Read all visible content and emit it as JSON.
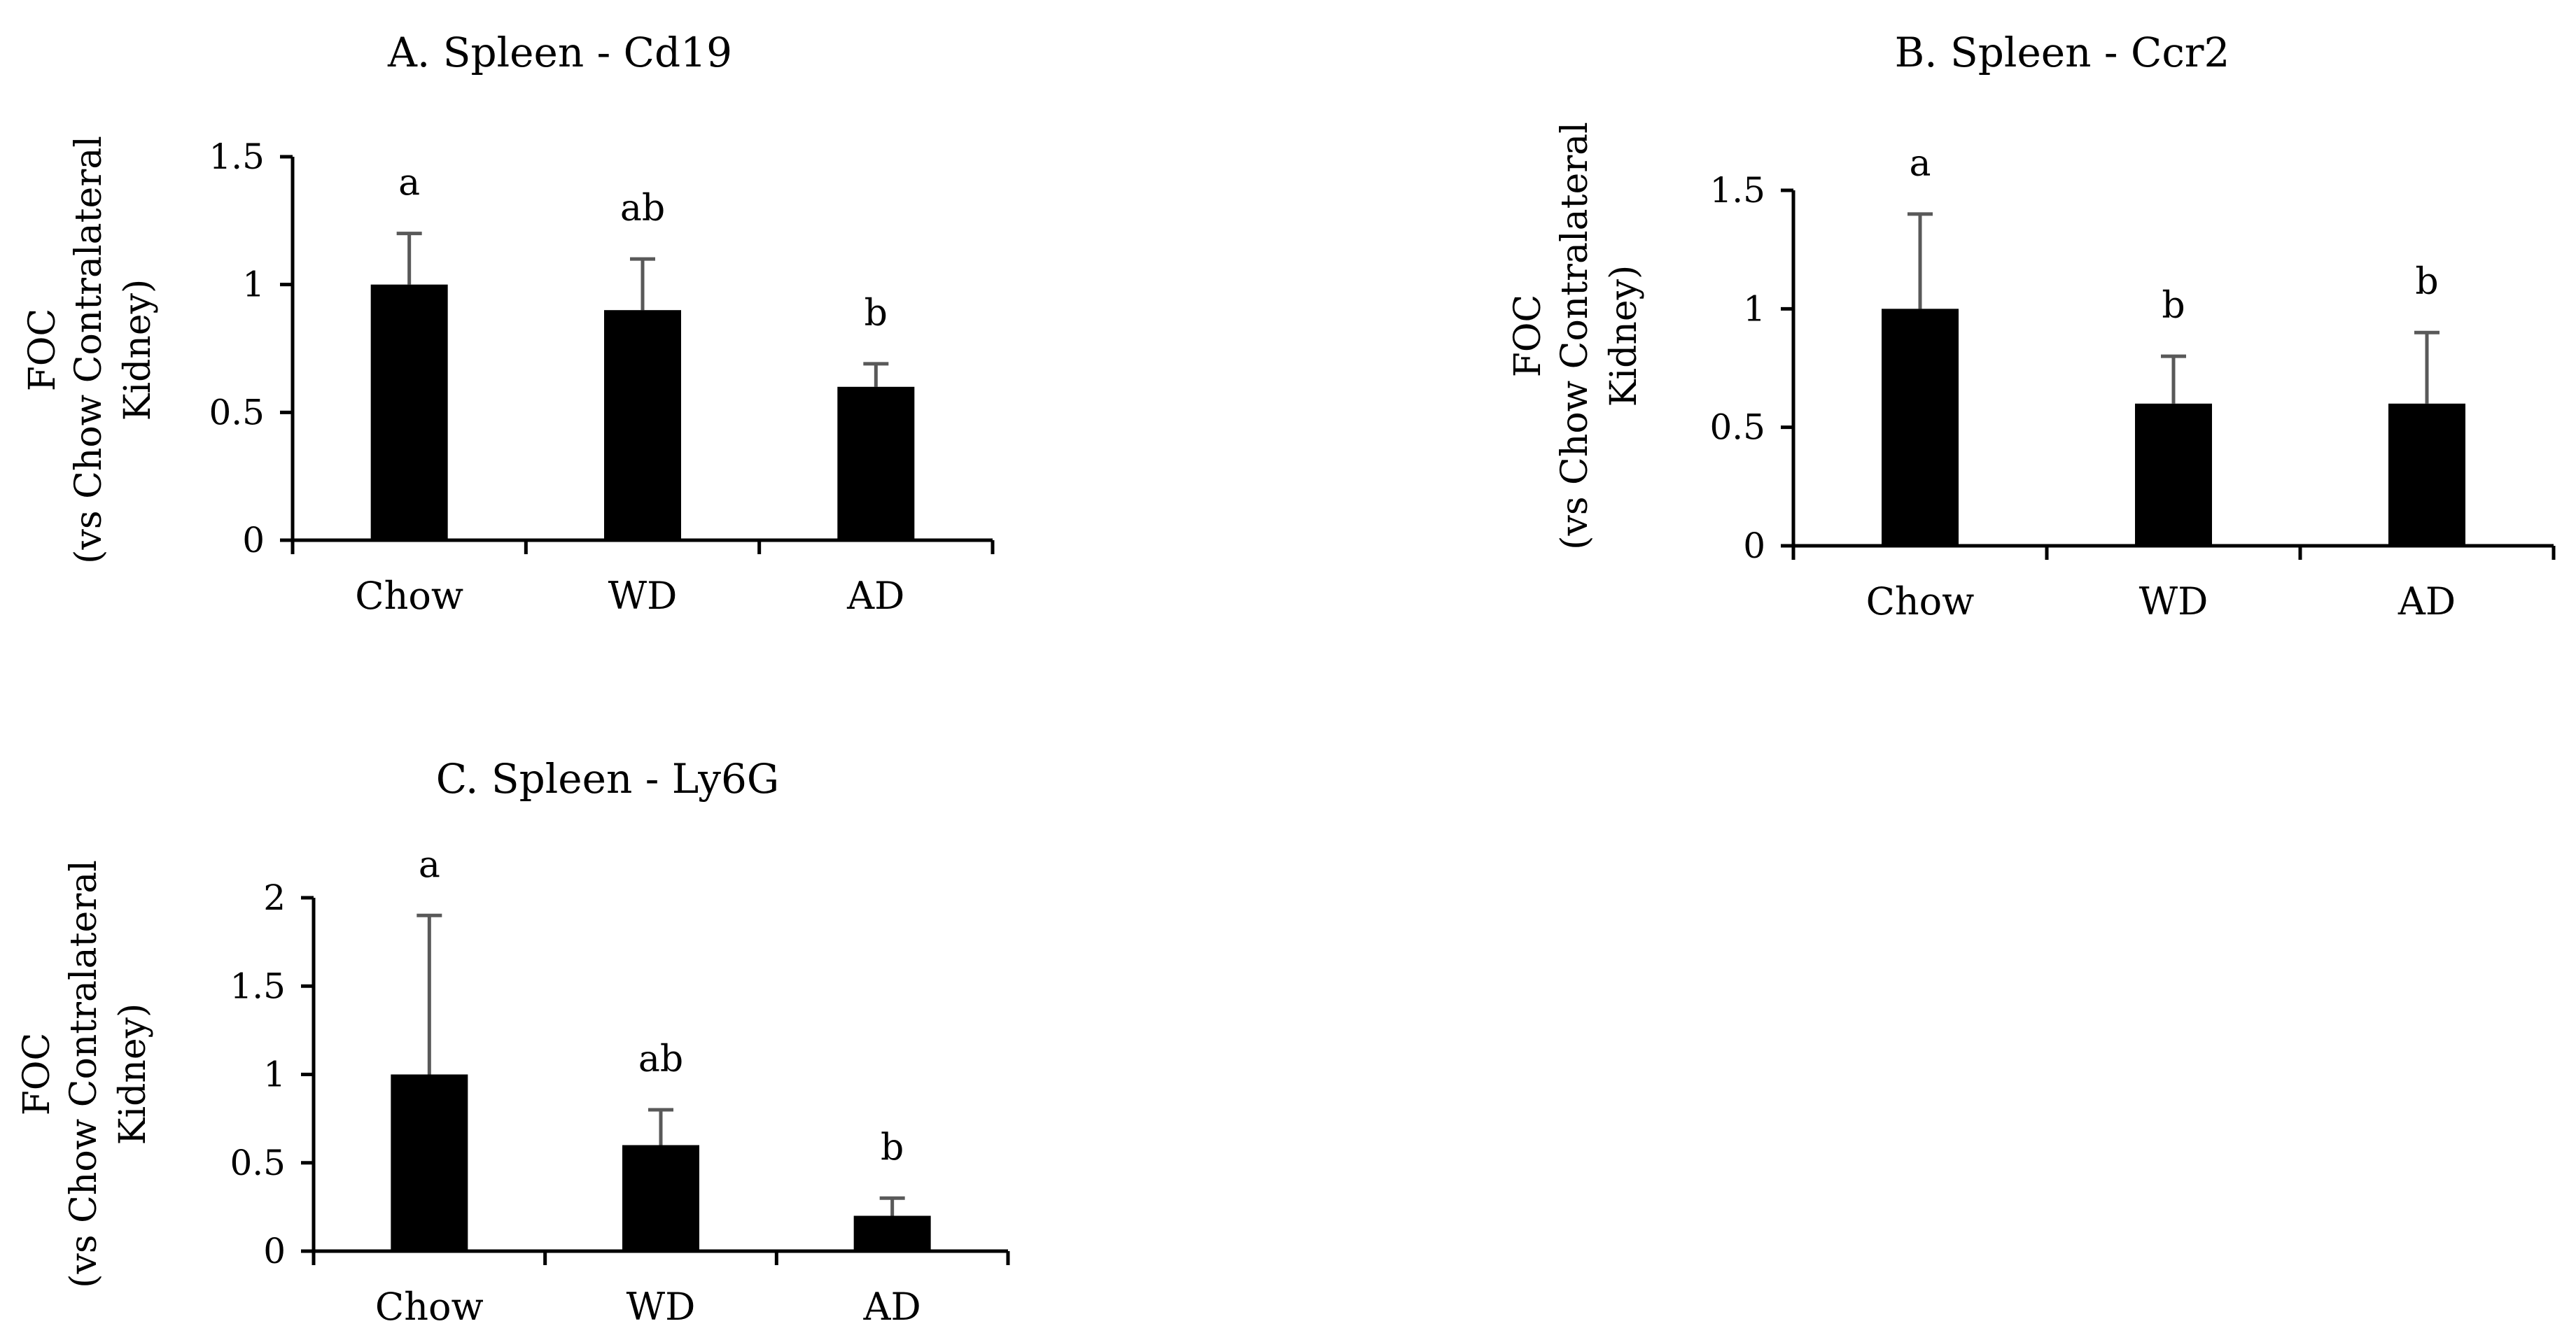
{
  "colors": {
    "bar": "#000000",
    "axis": "#000000",
    "errorbar": "#595959",
    "background": "#ffffff"
  },
  "chart_data": [
    {
      "type": "bar",
      "title": "A. Spleen - Cd19",
      "ylabel_line1": "FOC",
      "ylabel_line2": "(vs Chow Contralateral",
      "ylabel_line3": "Kidney)",
      "categories": [
        "Chow",
        "WD",
        "AD"
      ],
      "values": [
        1.0,
        0.9,
        0.6
      ],
      "errors": [
        0.2,
        0.2,
        0.09
      ],
      "significance": [
        "a",
        "ab",
        "b"
      ],
      "ylim": [
        0,
        1.5
      ],
      "yticks": [
        0,
        0.5,
        1,
        1.5
      ],
      "ytick_labels": [
        "0",
        "0.5",
        "1",
        "1.5"
      ]
    },
    {
      "type": "bar",
      "title": "B. Spleen - Ccr2",
      "ylabel_line1": "FOC",
      "ylabel_line2": "(vs Chow Contralateral",
      "ylabel_line3": "Kidney)",
      "categories": [
        "Chow",
        "WD",
        "AD"
      ],
      "values": [
        1.0,
        0.6,
        0.6
      ],
      "errors": [
        0.4,
        0.2,
        0.3
      ],
      "significance": [
        "a",
        "b",
        "b"
      ],
      "ylim": [
        0,
        1.5
      ],
      "yticks": [
        0,
        0.5,
        1,
        1.5
      ],
      "ytick_labels": [
        "0",
        "0.5",
        "1",
        "1.5"
      ]
    },
    {
      "type": "bar",
      "title": "C. Spleen - Ly6G",
      "ylabel_line1": "FOC",
      "ylabel_line2": "(vs Chow Contralateral",
      "ylabel_line3": "Kidney)",
      "categories": [
        "Chow",
        "WD",
        "AD"
      ],
      "values": [
        1.0,
        0.6,
        0.2
      ],
      "errors": [
        0.9,
        0.2,
        0.1
      ],
      "significance": [
        "a",
        "ab",
        "b"
      ],
      "ylim": [
        0,
        2
      ],
      "yticks": [
        0,
        0.5,
        1,
        1.5,
        2
      ],
      "ytick_labels": [
        "0",
        "0.5",
        "1",
        "1.5",
        "2"
      ]
    }
  ]
}
